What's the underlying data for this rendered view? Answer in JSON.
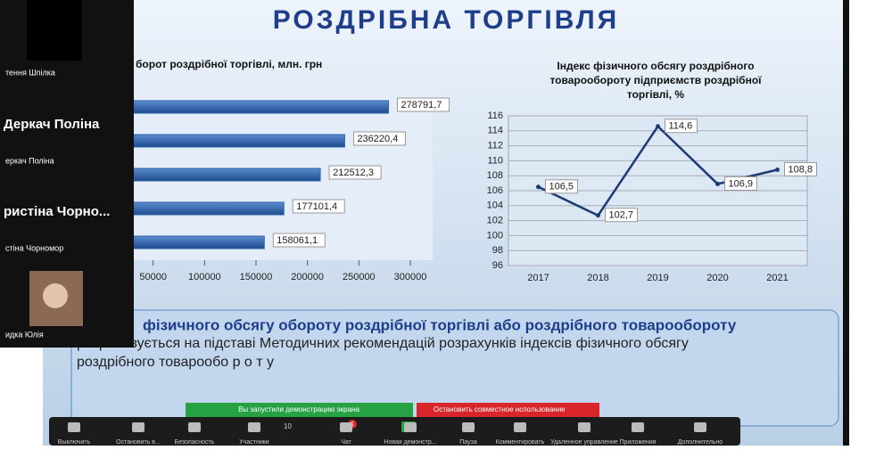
{
  "slide": {
    "title": "РОЗДРІБНА ТОРГІВЛЯ",
    "paragraph_1": "фізичного обсягу обороту роздрібної торгівлі або роздрібного товарообороту",
    "paragraph_2": "розраховується на підставі Методичних рекомендацій розрахунків індексів фізичного обсягу",
    "paragraph_3": "роздрібного товарообо р о т у"
  },
  "chart_data": [
    {
      "type": "hbar",
      "title": "борот роздрібної торгівлі, млн. грн",
      "values": [
        278791.7,
        236220.4,
        212512.3,
        177101.4,
        158061.1
      ],
      "value_labels": [
        "278791,7",
        "236220,4",
        "212512,3",
        "177101,4",
        "158061,1"
      ],
      "color": "#2e64a8",
      "xlim": [
        0,
        300000
      ],
      "xticks": [
        50000,
        100000,
        150000,
        200000,
        250000,
        300000
      ]
    },
    {
      "type": "line",
      "title_lines": [
        "Індекс фізичного обсягу роздрібного",
        "товарообороту підприємств роздрібної",
        "торгівлі, %"
      ],
      "categories": [
        "2017",
        "2018",
        "2019",
        "2020",
        "2021"
      ],
      "values": [
        106.5,
        102.7,
        114.6,
        106.9,
        108.8
      ],
      "value_labels": [
        "106,5",
        "102,7",
        "114,6",
        "106,9",
        "108,8"
      ],
      "color": "#1f3b73",
      "ylim": [
        96,
        116
      ],
      "yticks": [
        96,
        98,
        100,
        102,
        104,
        106,
        108,
        110,
        112,
        114,
        116
      ],
      "grid": true
    }
  ],
  "zoom": {
    "participants": [
      "тення Шпілка",
      "Деркач Поліна",
      "еркач Поліна",
      "ристіна Чорно...",
      "стіна Чорномор",
      "идка Юлія"
    ],
    "notice_start": "Вы запустили демонстрацию экрана",
    "notice_stop": "Остановить совместное использование",
    "participants_count": "10",
    "chat_badge": "1",
    "toolbar": [
      "Выключить",
      "Остановить в...",
      "Безопасность",
      "Участники",
      "Чат",
      "Новая демонстр...",
      "Пауза",
      "Комментировать",
      "Удаленное управление",
      "Приложения",
      "Дополнительно"
    ]
  }
}
